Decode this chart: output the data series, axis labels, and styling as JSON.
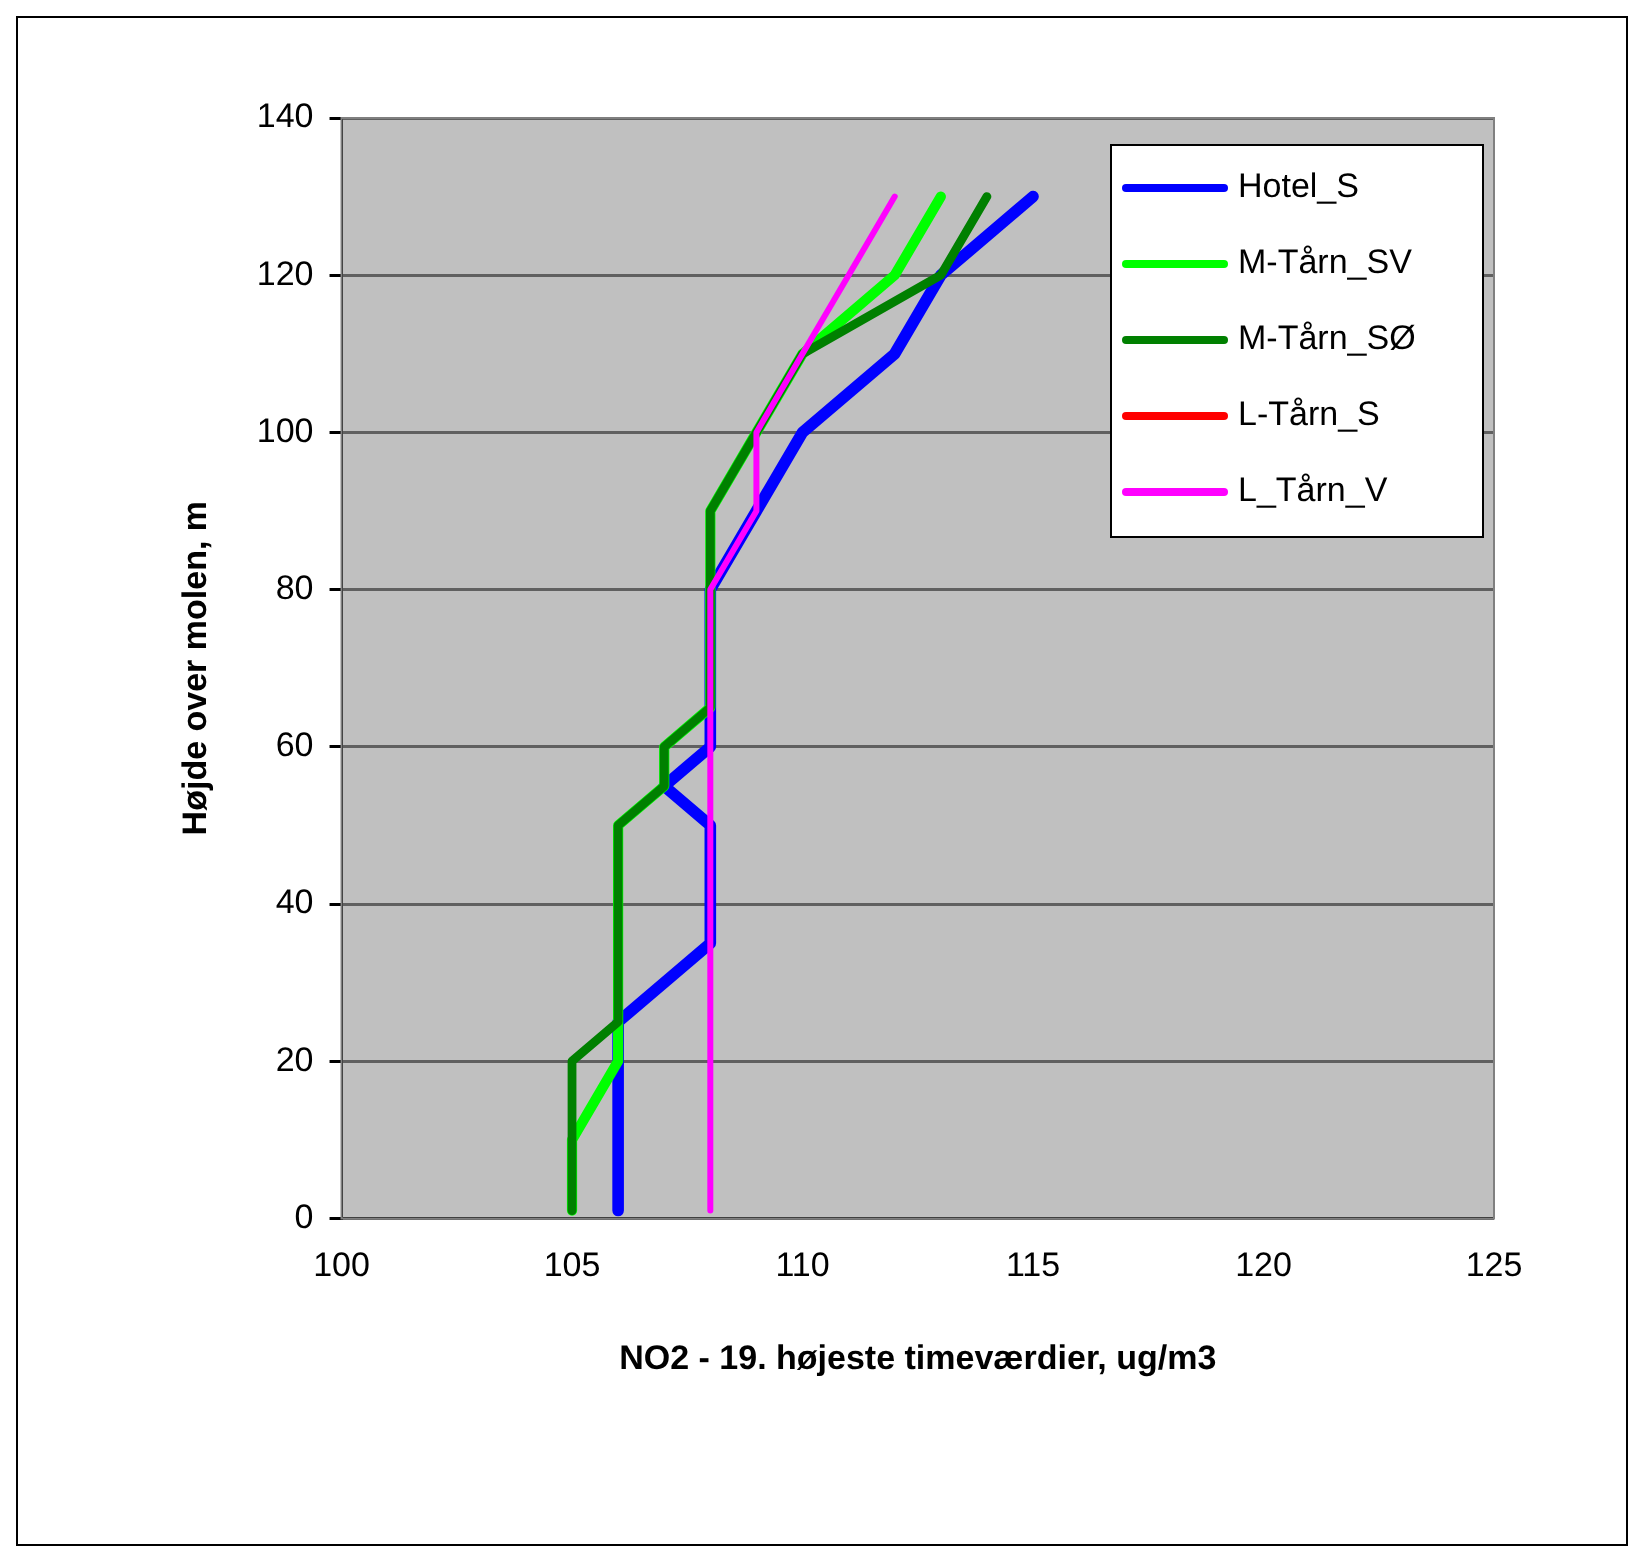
{
  "chart_data": {
    "type": "line",
    "xlabel": "NO2 - 19. højeste timeværdier, ug/m3",
    "ylabel": "Højde over molen, m",
    "xlim": [
      100,
      125
    ],
    "xticks": [
      100,
      105,
      110,
      115,
      120,
      125
    ],
    "ylim": [
      0,
      140
    ],
    "yticks": [
      0,
      20,
      40,
      60,
      80,
      100,
      120,
      140
    ],
    "grid": "y",
    "legend": "top right",
    "marker": "none",
    "line_style": "solid",
    "series": [
      {
        "name": "Hotel_S",
        "color": "#0000ff",
        "x": [
          106,
          106,
          108,
          108,
          107,
          108,
          108,
          109,
          110,
          112,
          113,
          115
        ],
        "values": [
          1,
          25,
          35,
          50,
          55,
          60,
          80,
          90,
          100,
          110,
          120,
          130
        ]
      },
      {
        "name": "M-Tårn_SV",
        "color": "#00ff00",
        "x": [
          105,
          105,
          106,
          106,
          107,
          107,
          108,
          108,
          109,
          110,
          112,
          113
        ],
        "values": [
          1,
          10,
          20,
          50,
          55,
          60,
          65,
          90,
          100,
          110,
          120,
          130
        ]
      },
      {
        "name": "M-Tårn_SØ",
        "color": "#008000",
        "x": [
          105,
          105,
          106,
          106,
          107,
          107,
          108,
          108,
          109,
          110,
          113,
          114
        ],
        "values": [
          1,
          20,
          25,
          50,
          55,
          60,
          65,
          90,
          100,
          110,
          120,
          130
        ]
      },
      {
        "name": "L-Tårn_S",
        "color": "#ff0000"
      },
      {
        "name": "L_Tårn_V",
        "color": "#ff00ff",
        "x": [
          108,
          108,
          109,
          109,
          110,
          111,
          112
        ],
        "values": [
          1,
          80,
          90,
          100,
          110,
          120,
          130
        ]
      }
    ]
  }
}
